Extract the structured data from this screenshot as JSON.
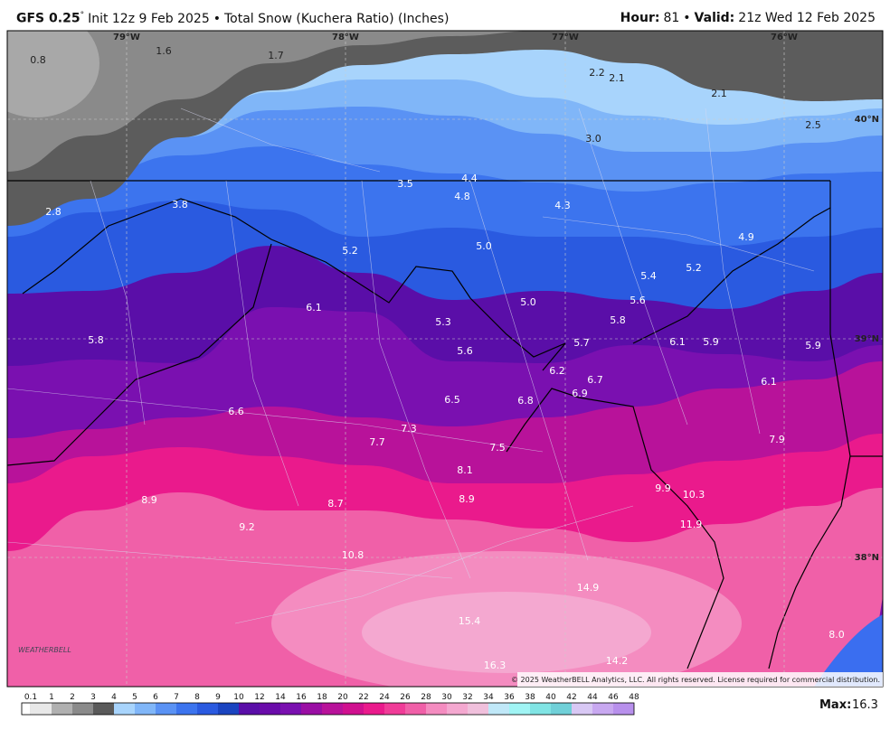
{
  "header": {
    "model": "GFS 0.25",
    "degree": "°",
    "init": "Init 12z 9 Feb 2025",
    "sep1": "•",
    "product": "Total Snow (Kuchera Ratio) (Inches)",
    "hour_label": "Hour:",
    "hour_value": "81",
    "sep2": "•",
    "valid_label": "Valid:",
    "valid_value": "21z Wed 12 Feb 2025"
  },
  "map": {
    "longitudes": [
      "79°W",
      "78°W",
      "77°W",
      "76°W"
    ],
    "latitudes": [
      "40°N",
      "39°N",
      "38°N"
    ],
    "labels": [
      "0.8",
      "1.6",
      "1.7",
      "2.2",
      "2.1",
      "2.1",
      "2.5",
      "3.0",
      "4.4",
      "3.5",
      "4.8",
      "4.3",
      "3.8",
      "2.8",
      "4.9",
      "5.0",
      "5.2",
      "5.2",
      "5.4",
      "5.6",
      "5.0",
      "6.1",
      "5.8",
      "5.3",
      "5.8",
      "5.7",
      "6.1",
      "5.9",
      "5.9",
      "5.6",
      "6.2",
      "6.7",
      "6.1",
      "6.9",
      "6.5",
      "6.8",
      "6.6",
      "7.3",
      "7.7",
      "7.9",
      "7.5",
      "8.1",
      "9.9",
      "10.3",
      "8.9",
      "8.9",
      "8.7",
      "11.9",
      "9.2",
      "10.8",
      "14.9",
      "15.4",
      "8.0",
      "14.2",
      "16.3"
    ]
  },
  "logo": "WEATHERBELL",
  "copyright": "© 2025 WeatherBELL Analytics, LLC. All rights reserved. License required for commercial distribution.",
  "colorbar": {
    "labels": [
      0.1,
      1,
      2,
      3,
      4,
      5,
      6,
      7,
      8,
      9,
      10,
      12,
      14,
      16,
      18,
      20,
      22,
      24,
      26,
      28,
      30,
      32,
      34,
      36,
      38,
      40,
      42,
      44,
      46,
      48
    ]
  },
  "max": {
    "label": "Max:",
    "value": "16.3"
  }
}
